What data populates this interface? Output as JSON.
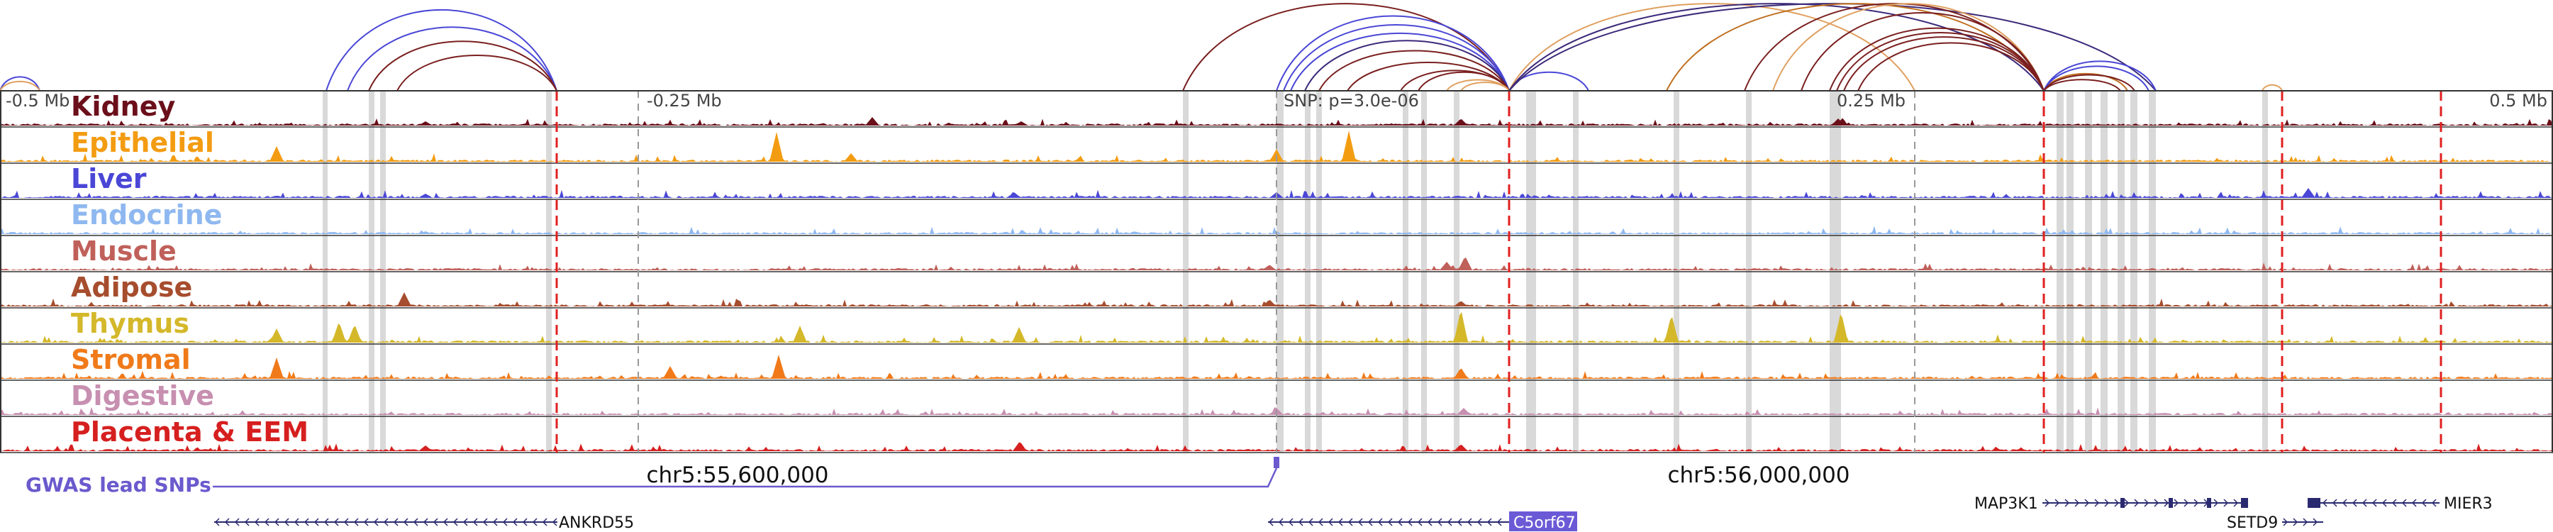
{
  "ticks": [
    {
      "label": "-0.5 Mb"
    },
    {
      "label": "-0.25 Mb"
    },
    {
      "label": "SNP: p=3.0e-06"
    },
    {
      "label": "0.25 Mb"
    },
    {
      "label": "0.5 Mb"
    }
  ],
  "tracks": [
    {
      "name": "Kidney",
      "color": "#6b0f1a"
    },
    {
      "name": "Epithelial",
      "color": "#f39c12"
    },
    {
      "name": "Liver",
      "color": "#4a47d6"
    },
    {
      "name": "Endocrine",
      "color": "#8fb8f0"
    },
    {
      "name": "Muscle",
      "color": "#c0605a"
    },
    {
      "name": "Adipose",
      "color": "#a64d2e"
    },
    {
      "name": "Thymus",
      "color": "#d4b82a"
    },
    {
      "name": "Stromal",
      "color": "#f07a1a"
    },
    {
      "name": "Digestive",
      "color": "#c78fb0"
    },
    {
      "name": "Placenta & EEM",
      "color": "#d61f1f"
    }
  ],
  "gwas": {
    "label": "GWAS lead SNPs",
    "color": "#6a5acd"
  },
  "coordinates": [
    "chr5:55,600,000",
    "chr5:56,000,000"
  ],
  "genes": [
    {
      "name": "ANKRD55",
      "strand": "-"
    },
    {
      "name": "C5orf67",
      "strand": "-",
      "highlight": true
    },
    {
      "name": "MAP3K1",
      "strand": "+"
    },
    {
      "name": "SETD9",
      "strand": "+"
    },
    {
      "name": "MIER3",
      "strand": "-"
    }
  ],
  "colors": {
    "gene_highlight_bg": "#6a5ad6",
    "highlight_band": "#d9d9d9",
    "dashed_red": "#e02020",
    "dashed_gray": "#999999",
    "loop_colors": [
      "#7a1f1f",
      "#4a47d6",
      "#e0a060",
      "#c07020",
      "#3c2a7a"
    ]
  }
}
